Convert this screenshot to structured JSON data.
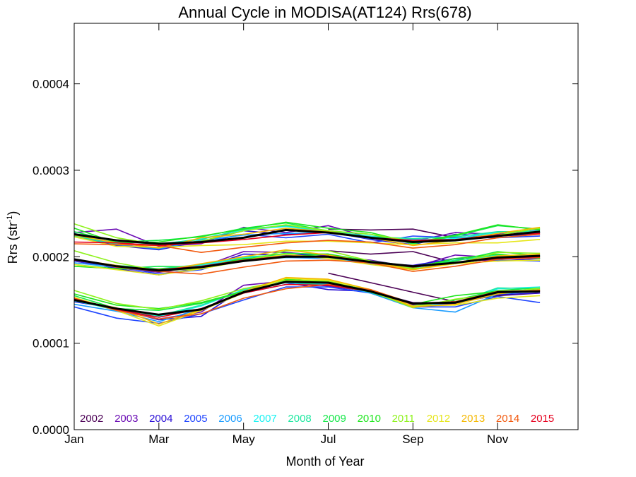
{
  "chart_data": {
    "type": "line",
    "title": "Annual Cycle in MODISA(AT124) Rrs(678)",
    "xlabel": "Month of Year",
    "ylabel_main": "Rrs (str",
    "ylabel_sup": "-1",
    "ylabel_close": ")",
    "xlim": [
      1,
      12.9
    ],
    "ylim": [
      0,
      0.00047
    ],
    "x_ticks": [
      {
        "x": 1,
        "label": "Jan"
      },
      {
        "x": 3,
        "label": "Mar"
      },
      {
        "x": 5,
        "label": "May"
      },
      {
        "x": 7,
        "label": "Jul"
      },
      {
        "x": 9,
        "label": "Sep"
      },
      {
        "x": 11,
        "label": "Nov"
      }
    ],
    "y_ticks": [
      {
        "y": 0,
        "label": "0.0000"
      },
      {
        "y": 0.0001,
        "label": "0.0001"
      },
      {
        "y": 0.0002,
        "label": "0.0002"
      },
      {
        "y": 0.0003,
        "label": "0.0003"
      },
      {
        "y": 0.0004,
        "label": "0.0004"
      }
    ],
    "x": [
      1,
      2,
      3,
      4,
      5,
      6,
      7,
      8,
      9,
      10,
      11,
      12
    ],
    "series": [
      {
        "name": "2002",
        "color": "#4b0055",
        "upper": [
          null,
          null,
          null,
          null,
          null,
          null,
          0.000232,
          0.000231,
          0.000232,
          0.000222,
          0.000225,
          0.000228
        ],
        "middle": [
          null,
          null,
          null,
          null,
          null,
          null,
          0.000207,
          0.000203,
          0.000206,
          0.000193,
          0.000198,
          0.0002
        ],
        "lower": [
          null,
          null,
          null,
          null,
          null,
          null,
          0.000181,
          0.00017,
          0.000159,
          0.000148,
          0.000155,
          0.000158
        ]
      },
      {
        "name": "2003",
        "color": "#6a0bb4",
        "upper": [
          0.000228,
          0.000232,
          0.000212,
          0.000215,
          0.000234,
          0.000228,
          0.000236,
          0.000222,
          0.000218,
          0.000228,
          0.000226,
          0.000231
        ],
        "middle": [
          0.000195,
          0.000187,
          0.000182,
          0.000188,
          0.000206,
          0.000205,
          0.000201,
          0.000196,
          0.000188,
          0.000202,
          0.000199,
          0.000202
        ],
        "lower": [
          0.00015,
          0.00014,
          0.000128,
          0.000136,
          0.000167,
          0.000172,
          0.000166,
          0.00016,
          0.000147,
          0.000146,
          0.00016,
          0.000161
        ]
      },
      {
        "name": "2004",
        "color": "#2a0fd6",
        "upper": [
          0.000224,
          0.000213,
          0.000208,
          0.000218,
          0.00023,
          0.000226,
          0.000229,
          0.00022,
          0.000214,
          0.000226,
          0.000224,
          0.000226
        ],
        "middle": [
          0.000197,
          0.000186,
          0.000179,
          0.000187,
          0.000203,
          0.000202,
          0.000203,
          0.000193,
          0.00019,
          0.000198,
          0.000195,
          0.000198
        ],
        "lower": [
          0.000148,
          0.00014,
          0.000127,
          0.000131,
          0.000163,
          0.00017,
          0.000162,
          0.00016,
          0.000144,
          0.000146,
          0.000156,
          0.000158
        ]
      },
      {
        "name": "2005",
        "color": "#1f45ff",
        "upper": [
          0.000225,
          0.000216,
          0.000213,
          0.000216,
          0.000226,
          0.000222,
          0.000226,
          0.000216,
          0.000224,
          0.000222,
          0.000222,
          0.000224
        ],
        "middle": [
          0.000195,
          0.000189,
          0.00018,
          0.000185,
          0.0002,
          0.000199,
          0.0002,
          0.000192,
          0.000187,
          0.000198,
          0.000196,
          0.000195
        ],
        "lower": [
          0.000142,
          0.000129,
          0.000123,
          0.000134,
          0.00015,
          0.000165,
          0.000165,
          0.000158,
          0.000142,
          0.000142,
          0.000154,
          0.000147
        ]
      },
      {
        "name": "2006",
        "color": "#1a9cff",
        "upper": [
          0.000226,
          0.000214,
          0.000209,
          0.000219,
          0.000225,
          0.000227,
          0.000228,
          0.000221,
          0.00022,
          0.00022,
          0.000224,
          0.000228
        ],
        "middle": [
          0.000193,
          0.000188,
          0.000184,
          0.00019,
          0.000196,
          0.000199,
          0.000198,
          0.000193,
          0.000186,
          0.000193,
          0.0002,
          0.000198
        ],
        "lower": [
          0.000145,
          0.000137,
          0.000125,
          0.00014,
          0.000158,
          0.000168,
          0.000169,
          0.000158,
          0.000141,
          0.000136,
          0.000157,
          0.00016
        ]
      },
      {
        "name": "2007",
        "color": "#19f2f2",
        "upper": [
          0.000227,
          0.000215,
          0.000214,
          0.000221,
          0.000231,
          0.000235,
          0.000229,
          0.000224,
          0.000219,
          0.000221,
          0.000228,
          0.00023
        ],
        "middle": [
          0.000197,
          0.000189,
          0.000185,
          0.00019,
          0.000199,
          0.000201,
          0.0002,
          0.000195,
          0.000187,
          0.000196,
          0.000201,
          0.000201
        ],
        "lower": [
          0.000149,
          0.000139,
          0.000131,
          0.000143,
          0.000162,
          0.00017,
          0.000168,
          0.000161,
          0.000145,
          0.000144,
          0.000163,
          0.000165
        ]
      },
      {
        "name": "2008",
        "color": "#1ee8a0",
        "upper": [
          0.000224,
          0.000214,
          0.000215,
          0.00022,
          0.000232,
          0.000236,
          0.00023,
          0.000223,
          0.000221,
          0.000223,
          0.000229,
          0.000229
        ],
        "middle": [
          0.000196,
          0.00019,
          0.000186,
          0.000191,
          0.0002,
          0.000202,
          0.000199,
          0.000194,
          0.000189,
          0.000196,
          0.000202,
          0.000199
        ],
        "lower": [
          0.00015,
          0.000138,
          0.000132,
          0.000144,
          0.000161,
          0.000171,
          0.000167,
          0.00016,
          0.000146,
          0.000147,
          0.000164,
          0.000163
        ]
      },
      {
        "name": "2009",
        "color": "#16e84a",
        "upper": [
          0.000229,
          0.000217,
          0.000219,
          0.000223,
          0.000233,
          0.000239,
          0.00023,
          0.000226,
          0.000215,
          0.000224,
          0.000236,
          0.000232
        ],
        "middle": [
          0.000191,
          0.000186,
          0.000189,
          0.000188,
          0.000197,
          0.000204,
          0.000203,
          0.000195,
          0.000189,
          0.000195,
          0.000206,
          0.000201
        ],
        "lower": [
          0.000155,
          0.00014,
          0.000138,
          0.000146,
          0.000159,
          0.000172,
          0.00017,
          0.000159,
          0.000143,
          0.00015,
          0.000161,
          0.000164
        ]
      },
      {
        "name": "2010",
        "color": "#1ee61e",
        "upper": [
          0.000233,
          0.000216,
          0.000217,
          0.000224,
          0.000232,
          0.00024,
          0.000233,
          0.000228,
          0.000216,
          0.000225,
          0.000237,
          0.000231
        ],
        "middle": [
          0.000189,
          0.000186,
          0.000186,
          0.000188,
          0.000198,
          0.0002,
          0.000203,
          0.000194,
          0.000187,
          0.000198,
          0.000203,
          0.000198
        ],
        "lower": [
          0.000157,
          0.000144,
          0.00014,
          0.000147,
          0.00016,
          0.000174,
          0.000171,
          0.000161,
          0.000145,
          0.000155,
          0.00016,
          0.000162
        ]
      },
      {
        "name": "2011",
        "color": "#8ef21c",
        "upper": [
          0.000238,
          0.000222,
          0.000214,
          0.000218,
          0.00023,
          0.000237,
          0.00023,
          0.000226,
          0.000218,
          0.000219,
          0.000225,
          0.000233
        ],
        "middle": [
          0.000207,
          0.000193,
          0.000184,
          0.000186,
          0.000195,
          0.000207,
          0.000207,
          0.000195,
          0.000186,
          0.000192,
          0.000205,
          0.000204
        ],
        "lower": [
          0.000161,
          0.000146,
          0.000139,
          0.000149,
          0.000163,
          0.000173,
          0.000172,
          0.00016,
          0.000141,
          0.000151,
          0.000157,
          0.000164
        ]
      },
      {
        "name": "2012",
        "color": "#e6e61a",
        "upper": [
          0.000223,
          0.000212,
          0.000211,
          0.000213,
          0.000214,
          0.000218,
          0.000218,
          0.000216,
          0.000214,
          0.000216,
          0.000216,
          0.00022
        ],
        "middle": [
          0.000191,
          0.000185,
          0.000179,
          0.000186,
          0.000195,
          0.000203,
          0.000198,
          0.000191,
          0.000185,
          0.000192,
          0.000195,
          0.000196
        ],
        "lower": [
          0.000153,
          0.000138,
          0.00012,
          0.000138,
          0.000158,
          0.000175,
          0.000173,
          0.000162,
          0.000143,
          0.000144,
          0.000152,
          0.000155
        ]
      },
      {
        "name": "2013",
        "color": "#f5b800",
        "upper": [
          0.000225,
          0.000216,
          0.00021,
          0.000222,
          0.000226,
          0.000233,
          0.000229,
          0.000222,
          0.000213,
          0.000219,
          0.000227,
          0.000234
        ],
        "middle": [
          0.000197,
          0.00019,
          0.000183,
          0.000192,
          0.0002,
          0.000208,
          0.000202,
          0.000194,
          0.000185,
          0.000193,
          0.000201,
          0.000203
        ],
        "lower": [
          0.00015,
          0.000141,
          0.000122,
          0.000139,
          0.00016,
          0.000176,
          0.000174,
          0.000162,
          0.000142,
          0.000145,
          0.000157,
          0.000162
        ]
      },
      {
        "name": "2014",
        "color": "#f25a0f",
        "upper": [
          0.000215,
          0.000214,
          0.000213,
          0.000205,
          0.000211,
          0.000216,
          0.000219,
          0.000217,
          0.00021,
          0.000214,
          0.000222,
          0.000226
        ],
        "middle": [
          0.000197,
          0.000188,
          0.000183,
          0.00018,
          0.000188,
          0.000195,
          0.000196,
          0.000193,
          0.000183,
          0.000189,
          0.000197,
          0.000199
        ],
        "lower": [
          0.000152,
          0.000138,
          0.000128,
          0.000134,
          0.000152,
          0.000163,
          0.000168,
          0.000162,
          0.000146,
          0.000148,
          0.00016,
          0.000161
        ]
      },
      {
        "name": "2015",
        "color": "#e6001e",
        "upper": [
          0.000217,
          0.000216,
          0.000213,
          0.000216,
          0.00022,
          0.000225,
          0.000228,
          0.000222,
          0.000219,
          0.00022,
          0.000225,
          0.000227
        ],
        "middle": [
          0.000196,
          0.000189,
          0.000185,
          0.000189,
          0.000196,
          0.000201,
          0.0002,
          0.000194,
          0.000188,
          0.000193,
          0.000198,
          0.0002
        ],
        "lower": [
          0.000151,
          0.000139,
          0.00013,
          0.00014,
          0.000158,
          0.000168,
          0.000167,
          0.00016,
          0.000145,
          0.000147,
          0.000159,
          0.00016
        ]
      }
    ],
    "mean": {
      "color": "#000000",
      "upper": [
        0.000226,
        0.000219,
        0.000215,
        0.000217,
        0.000222,
        0.000231,
        0.000228,
        0.000222,
        0.000217,
        0.000219,
        0.000224,
        0.000229
      ],
      "middle": [
        0.000197,
        0.000189,
        0.000184,
        0.000188,
        0.000195,
        0.0002,
        0.0002,
        0.000194,
        0.000189,
        0.000193,
        0.000199,
        0.000201
      ],
      "lower": [
        0.00015,
        0.00014,
        0.000133,
        0.000139,
        0.000159,
        0.000171,
        0.00017,
        0.00016,
        0.000146,
        0.000147,
        0.000159,
        0.00016
      ]
    }
  }
}
